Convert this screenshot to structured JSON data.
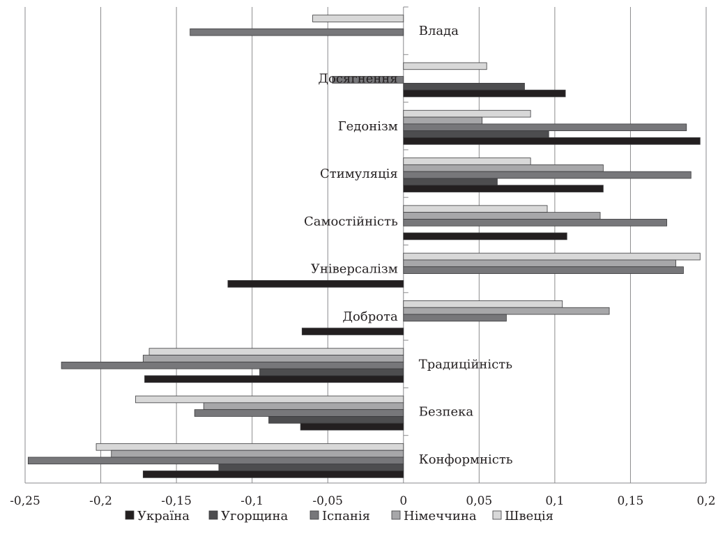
{
  "chart_data": {
    "type": "bar",
    "orientation": "horizontal",
    "title": "",
    "xlabel": "",
    "ylabel": "",
    "xlim": [
      -0.25,
      0.2
    ],
    "xticks": [
      -0.25,
      -0.2,
      -0.15,
      -0.1,
      -0.05,
      0,
      0.05,
      0.1,
      0.15,
      0.2
    ],
    "xtick_labels": [
      "-0,25",
      "-0,2",
      "-0,15",
      "-0,1",
      "-0,05",
      "0",
      "0,05",
      "0,1",
      "0,15",
      "0,2"
    ],
    "grid": "vertical",
    "legend_position": "bottom",
    "categories": [
      "Влада",
      "Досягнення",
      "Гедонізм",
      "Стимуляція",
      "Самостійність",
      "Універсалізм",
      "Доброта",
      "Традиційність",
      "Безпека",
      "Конформність"
    ],
    "series": [
      {
        "name": "Україна",
        "color": "#231f20",
        "values": [
          0,
          0.107,
          0.196,
          0.132,
          0.108,
          -0.116,
          -0.067,
          -0.171,
          -0.068,
          -0.172
        ]
      },
      {
        "name": "Угорщина",
        "color": "#4d4d4f",
        "values": [
          0,
          0.08,
          0.096,
          0.062,
          0,
          0,
          0,
          -0.095,
          -0.089,
          -0.122
        ]
      },
      {
        "name": "Іспанія",
        "color": "#77777a",
        "values": [
          -0.141,
          -0.047,
          0.187,
          0.19,
          0.174,
          0.185,
          0.068,
          -0.226,
          -0.138,
          -0.248
        ]
      },
      {
        "name": "Німеччина",
        "color": "#a7a7a9",
        "values": [
          0,
          0,
          0.052,
          0.132,
          0.13,
          0.18,
          0.136,
          -0.172,
          -0.132,
          -0.193
        ]
      },
      {
        "name": "Швеція",
        "color": "#d8d8d8",
        "values": [
          -0.06,
          0.055,
          0.084,
          0.084,
          0.095,
          0.196,
          0.105,
          -0.168,
          -0.177,
          -0.203
        ]
      }
    ]
  }
}
